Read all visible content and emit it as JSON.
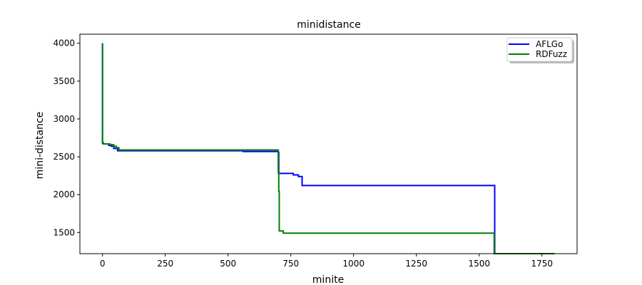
{
  "chart_data": {
    "type": "line",
    "title": "minidistance",
    "xlabel": "minite",
    "ylabel": "mini-distance",
    "xlim": [
      -90,
      1890
    ],
    "ylim": [
      1220,
      4120
    ],
    "xticks": [
      0,
      250,
      500,
      750,
      1000,
      1250,
      1500,
      1750
    ],
    "yticks": [
      1500,
      2000,
      2500,
      3000,
      3500,
      4000
    ],
    "grid": false,
    "legend_position": "top-right",
    "series": [
      {
        "name": "AFLGo",
        "color": "#0000ff",
        "x": [
          0,
          0,
          3,
          3,
          25,
          25,
          35,
          35,
          45,
          45,
          60,
          60,
          560,
          560,
          700,
          700,
          702,
          702,
          760,
          760,
          780,
          780,
          795,
          795,
          1562,
          1562,
          1800
        ],
        "y": [
          4000,
          2680,
          2680,
          2670,
          2670,
          2650,
          2650,
          2640,
          2640,
          2610,
          2610,
          2580,
          2580,
          2570,
          2570,
          2560,
          2560,
          2280,
          2280,
          2260,
          2260,
          2240,
          2240,
          2120,
          2120,
          1220,
          1220
        ]
      },
      {
        "name": "RDFuzz",
        "color": "#008000",
        "x": [
          0,
          0,
          3,
          3,
          30,
          30,
          45,
          45,
          55,
          55,
          65,
          65,
          700,
          700,
          702,
          702,
          704,
          704,
          720,
          720,
          1560,
          1560,
          1800
        ],
        "y": [
          4000,
          2690,
          2690,
          2670,
          2670,
          2660,
          2660,
          2640,
          2640,
          2620,
          2620,
          2590,
          2590,
          2290,
          2290,
          2040,
          2040,
          1520,
          1520,
          1490,
          1490,
          1220,
          1220
        ]
      }
    ]
  }
}
